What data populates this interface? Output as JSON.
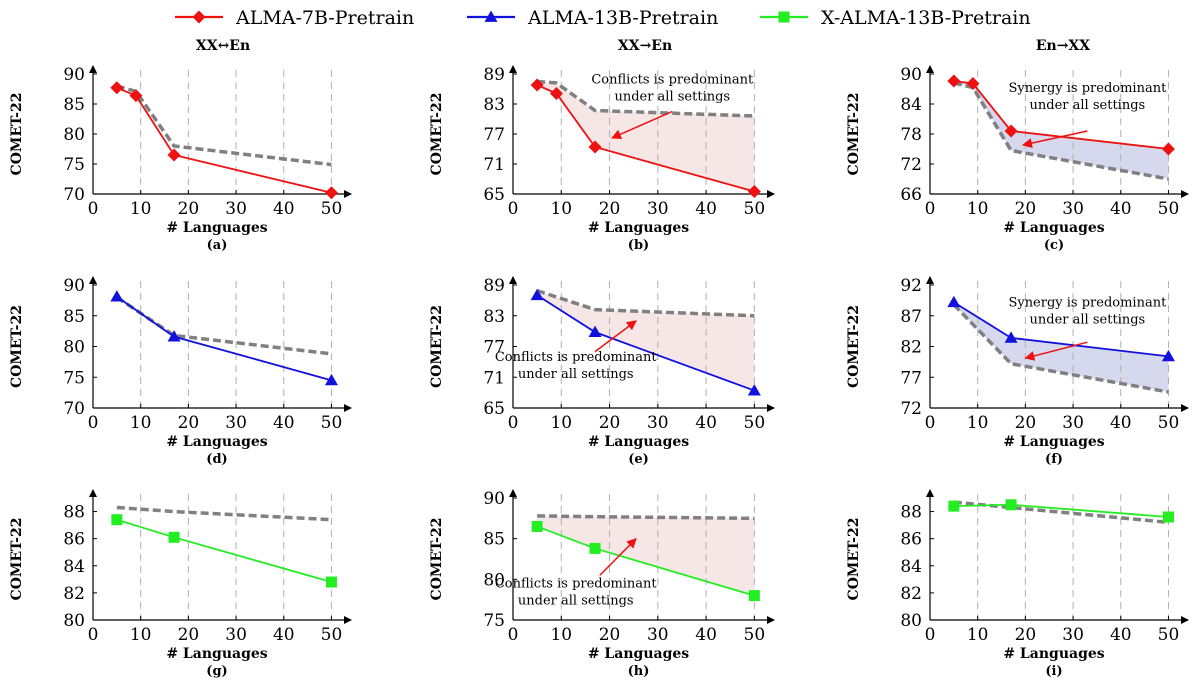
{
  "colors": {
    "ALMA-7B-Pretrain": "#ee1111",
    "ALMA-13B-Pretrain": "#1111dd",
    "X-ALMA-13B-Pretrain": "#22ee22",
    "reference_dashed": "#808080",
    "conflict_fill": "#f6e6e6",
    "synergy_fill": "#d6d8ee",
    "annotation_arrow": "#ee1111"
  },
  "legend": [
    {
      "name": "ALMA-7B-Pretrain",
      "marker": "diamond"
    },
    {
      "name": "ALMA-13B-Pretrain",
      "marker": "triangle"
    },
    {
      "name": "X-ALMA-13B-Pretrain",
      "marker": "square"
    }
  ],
  "column_titles": [
    "XX↔En",
    "XX→En",
    "En→XX"
  ],
  "chart_data": [
    {
      "id": "a",
      "panel_label": "(a)",
      "type": "line",
      "xlabel": "# Languages",
      "ylabel": "COMET-22",
      "xlim": [
        0,
        52
      ],
      "xticks": [
        0,
        10,
        20,
        30,
        40,
        50
      ],
      "ylim": [
        70,
        90
      ],
      "yticks": [
        70,
        75,
        80,
        85,
        90
      ],
      "series": [
        {
          "name": "ALMA-7B-Pretrain",
          "x": [
            5,
            9,
            17,
            50
          ],
          "y": [
            87.7,
            86.4,
            76.5,
            70.2
          ]
        }
      ],
      "reference": {
        "x": [
          5,
          9,
          17,
          50
        ],
        "y": [
          88.0,
          87.1,
          78.0,
          74.9
        ]
      },
      "fill": null,
      "annotation": null
    },
    {
      "id": "b",
      "panel_label": "(b)",
      "type": "line",
      "xlabel": "# Languages",
      "ylabel": "COMET-22",
      "xlim": [
        0,
        52
      ],
      "xticks": [
        0,
        10,
        20,
        30,
        40,
        50
      ],
      "ylim": [
        65,
        89
      ],
      "yticks": [
        65,
        71,
        77,
        83,
        89
      ],
      "series": [
        {
          "name": "ALMA-7B-Pretrain",
          "x": [
            5,
            9,
            17,
            50
          ],
          "y": [
            86.8,
            85.1,
            74.4,
            65.5
          ]
        }
      ],
      "reference": {
        "x": [
          5,
          9,
          17,
          50
        ],
        "y": [
          87.5,
          87.2,
          81.7,
          80.6
        ]
      },
      "fill": "conflict",
      "annotation": {
        "lines": [
          "Conflicts is predominant",
          "under all settings"
        ],
        "text_at": [
          33,
          87.1
        ],
        "arrow_from": [
          33,
          81.5
        ],
        "arrow_to": [
          20.5,
          76.2
        ]
      }
    },
    {
      "id": "c",
      "panel_label": "(c)",
      "type": "line",
      "xlabel": "# Languages",
      "ylabel": "COMET-22",
      "xlim": [
        0,
        52
      ],
      "xticks": [
        0,
        10,
        20,
        30,
        40,
        50
      ],
      "ylim": [
        66,
        90
      ],
      "yticks": [
        66,
        72,
        78,
        84,
        90
      ],
      "series": [
        {
          "name": "ALMA-7B-Pretrain",
          "x": [
            5,
            9,
            17,
            50
          ],
          "y": [
            88.6,
            88.1,
            78.6,
            75.0
          ]
        }
      ],
      "reference": {
        "x": [
          5,
          9,
          17,
          50
        ],
        "y": [
          88.2,
          87.3,
          74.7,
          69.0
        ]
      },
      "fill": "synergy",
      "annotation": {
        "lines": [
          "Synergy is predominant",
          "under all settings"
        ],
        "text_at": [
          33,
          86.4
        ],
        "arrow_from": [
          33,
          78.6
        ],
        "arrow_to": [
          19.5,
          75.8
        ]
      }
    },
    {
      "id": "d",
      "panel_label": "(d)",
      "type": "line",
      "xlabel": "# Languages",
      "ylabel": "COMET-22",
      "xlim": [
        0,
        52
      ],
      "xticks": [
        0,
        10,
        20,
        30,
        40,
        50
      ],
      "ylim": [
        70,
        90
      ],
      "yticks": [
        70,
        75,
        80,
        85,
        90
      ],
      "series": [
        {
          "name": "ALMA-13B-Pretrain",
          "x": [
            5,
            17,
            50
          ],
          "y": [
            88.1,
            81.6,
            74.5
          ]
        }
      ],
      "reference": {
        "x": [
          5,
          17,
          50
        ],
        "y": [
          88.0,
          81.8,
          78.8
        ]
      },
      "fill": null,
      "annotation": null
    },
    {
      "id": "e",
      "panel_label": "(e)",
      "type": "line",
      "xlabel": "# Languages",
      "ylabel": "COMET-22",
      "xlim": [
        0,
        52
      ],
      "xticks": [
        0,
        10,
        20,
        30,
        40,
        50
      ],
      "ylim": [
        65,
        89
      ],
      "yticks": [
        65,
        71,
        77,
        83,
        89
      ],
      "series": [
        {
          "name": "ALMA-13B-Pretrain",
          "x": [
            5,
            17,
            50
          ],
          "y": [
            87.0,
            79.8,
            68.4
          ]
        }
      ],
      "reference": {
        "x": [
          5,
          17,
          50
        ],
        "y": [
          87.9,
          84.2,
          83.0
        ]
      },
      "fill": "conflict",
      "annotation": {
        "lines": [
          "Conflicts is predominant",
          "under all settings"
        ],
        "text_at": [
          13,
          74.2
        ],
        "arrow_from": [
          17,
          76.0
        ],
        "arrow_to": [
          25.5,
          82.0
        ]
      }
    },
    {
      "id": "f",
      "panel_label": "(f)",
      "type": "line",
      "xlabel": "# Languages",
      "ylabel": "COMET-22",
      "xlim": [
        0,
        52
      ],
      "xticks": [
        0,
        10,
        20,
        30,
        40,
        50
      ],
      "ylim": [
        72,
        92
      ],
      "yticks": [
        72,
        77,
        82,
        87,
        92
      ],
      "series": [
        {
          "name": "ALMA-13B-Pretrain",
          "x": [
            5,
            17,
            50
          ],
          "y": [
            89.2,
            83.4,
            80.4
          ]
        }
      ],
      "reference": {
        "x": [
          5,
          17,
          50
        ],
        "y": [
          88.8,
          79.2,
          74.6
        ]
      },
      "fill": "synergy",
      "annotation": {
        "lines": [
          "Synergy is predominant",
          "under all settings"
        ],
        "text_at": [
          33,
          88.5
        ],
        "arrow_from": [
          33,
          82.7
        ],
        "arrow_to": [
          20,
          80.1
        ]
      }
    },
    {
      "id": "g",
      "panel_label": "(g)",
      "type": "line",
      "xlabel": "# Languages",
      "ylabel": "COMET-22",
      "xlim": [
        0,
        52
      ],
      "xticks": [
        0,
        10,
        20,
        30,
        40,
        50
      ],
      "ylim": [
        80,
        89
      ],
      "yticks": [
        80,
        82,
        84,
        86,
        88
      ],
      "series": [
        {
          "name": "X-ALMA-13B-Pretrain",
          "x": [
            5,
            17,
            50
          ],
          "y": [
            87.4,
            86.1,
            82.8
          ]
        }
      ],
      "reference": {
        "x": [
          5,
          17,
          50
        ],
        "y": [
          88.3,
          88.0,
          87.4
        ]
      },
      "fill": null,
      "annotation": null
    },
    {
      "id": "h",
      "panel_label": "(h)",
      "type": "line",
      "xlabel": "# Languages",
      "ylabel": "COMET-22",
      "xlim": [
        0,
        52
      ],
      "xticks": [
        0,
        10,
        20,
        30,
        40,
        50
      ],
      "ylim": [
        75,
        90
      ],
      "yticks": [
        75,
        80,
        85,
        90
      ],
      "series": [
        {
          "name": "X-ALMA-13B-Pretrain",
          "x": [
            5,
            17,
            50
          ],
          "y": [
            86.5,
            83.8,
            78.0
          ]
        }
      ],
      "reference": {
        "x": [
          5,
          17,
          50
        ],
        "y": [
          87.8,
          87.7,
          87.5
        ]
      },
      "fill": "conflict",
      "annotation": {
        "lines": [
          "Conflicts is predominant",
          "under all settings"
        ],
        "text_at": [
          13,
          79.0
        ],
        "arrow_from": [
          18,
          80.5
        ],
        "arrow_to": [
          25.5,
          85.0
        ]
      }
    },
    {
      "id": "i",
      "panel_label": "(i)",
      "type": "line",
      "xlabel": "# Languages",
      "ylabel": "COMET-22",
      "xlim": [
        0,
        52
      ],
      "xticks": [
        0,
        10,
        20,
        30,
        40,
        50
      ],
      "ylim": [
        80,
        89
      ],
      "yticks": [
        80,
        82,
        84,
        86,
        88
      ],
      "series": [
        {
          "name": "X-ALMA-13B-Pretrain",
          "x": [
            5,
            17,
            50
          ],
          "y": [
            88.4,
            88.5,
            87.6
          ]
        }
      ],
      "reference": {
        "x": [
          5,
          17,
          50
        ],
        "y": [
          88.7,
          88.3,
          87.2
        ]
      },
      "fill": null,
      "annotation": null
    }
  ]
}
